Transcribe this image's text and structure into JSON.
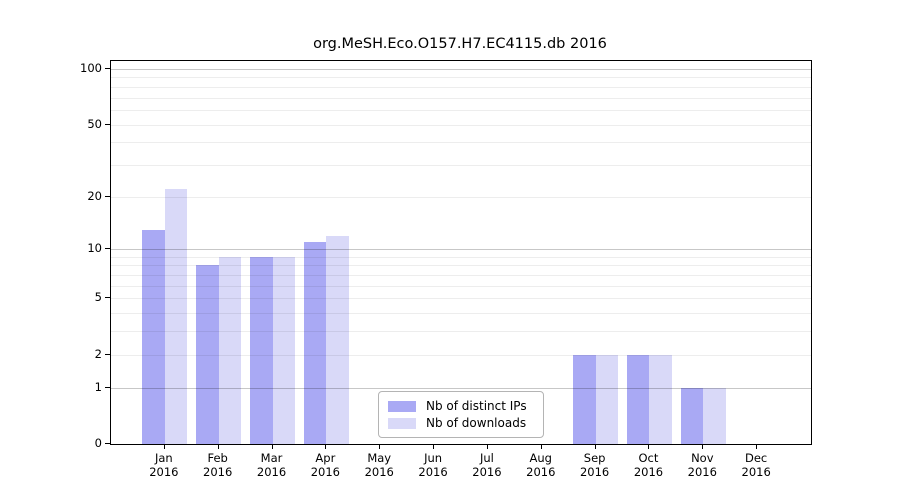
{
  "chart_data": {
    "type": "bar",
    "title": "org.MeSH.Eco.O157.H7.EC4115.db 2016",
    "categories": [
      "Jan",
      "Feb",
      "Mar",
      "Apr",
      "May",
      "Jun",
      "Jul",
      "Aug",
      "Sep",
      "Oct",
      "Nov",
      "Dec"
    ],
    "category_year": "2016",
    "series": [
      {
        "name": "Nb of distinct IPs",
        "color": "#a9a9f4",
        "values": [
          13,
          8,
          9,
          11,
          0,
          0,
          0,
          0,
          2,
          2,
          1,
          0
        ]
      },
      {
        "name": "Nb of downloads",
        "color": "#d9d9f8",
        "values": [
          22,
          9,
          9,
          12,
          0,
          0,
          0,
          0,
          2,
          2,
          1,
          0
        ]
      }
    ],
    "y_ticks": [
      100,
      50,
      20,
      10,
      5,
      2,
      1,
      0
    ],
    "minor_gridlines": [
      2,
      3,
      4,
      5,
      6,
      7,
      8,
      9,
      20,
      30,
      40,
      50,
      60,
      70,
      80,
      90
    ],
    "major_gridlines": [
      1,
      10,
      100
    ],
    "scale": "log10(value+1)",
    "ylim_transformed_max": 2.047,
    "xlabel": "",
    "ylabel": "",
    "grid": true,
    "legend_position": "lower-center"
  },
  "colors": {
    "distinct_ips": "#a9a9f4",
    "downloads": "#d9d9f8",
    "spine": "#000000",
    "background": "#ffffff",
    "legend_border": "#b4b4b4"
  }
}
